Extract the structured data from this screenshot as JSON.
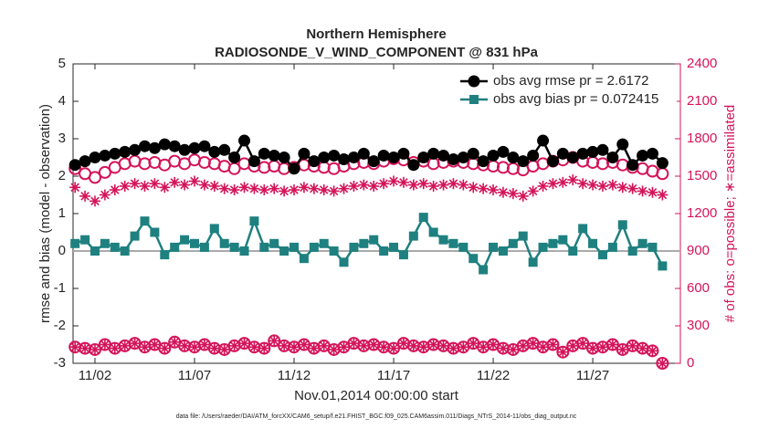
{
  "chart_data": {
    "type": "line",
    "title": "Northern Hemisphere",
    "subtitle": "RADIOSONDE_V_WIND_COMPONENT @ 831 hPa",
    "ylabel": "rmse and bias (model - observation)",
    "y2label": "# of obs: o=possible; ∗=assimilated",
    "xlabel": "Nov.01,2014 00:00:00 start",
    "footnote": "data file: /Users/raeder/DAI/ATM_forcXX/CAM6_setup/f.e21.FHIST_BGC.f09_025.CAM6assim.011/Diags_NTrS_2014-11/obs_diag_output.nc",
    "legend": "upper right",
    "hline": 0,
    "xlim": [
      0.9,
      31.4
    ],
    "xticks": [
      {
        "value": 2,
        "label": "11/02"
      },
      {
        "value": 7,
        "label": "11/07"
      },
      {
        "value": 12,
        "label": "11/12"
      },
      {
        "value": 17,
        "label": "11/17"
      },
      {
        "value": 22,
        "label": "11/22"
      },
      {
        "value": 27,
        "label": "11/27"
      }
    ],
    "ylim": [
      -3,
      5
    ],
    "yticks": [
      -3,
      -2,
      -1,
      0,
      1,
      2,
      3,
      4,
      5
    ],
    "y2lim": [
      0,
      2400
    ],
    "y2ticks": [
      0,
      300,
      600,
      900,
      1200,
      1500,
      1800,
      2100,
      2400
    ],
    "x": [
      1,
      1.5,
      2,
      2.5,
      3,
      3.5,
      4,
      4.5,
      5,
      5.5,
      6,
      6.5,
      7,
      7.5,
      8,
      8.5,
      9,
      9.5,
      10,
      10.5,
      11,
      11.5,
      12,
      12.5,
      13,
      13.5,
      14,
      14.5,
      15,
      15.5,
      16,
      16.5,
      17,
      17.5,
      18,
      18.5,
      19,
      19.5,
      20,
      20.5,
      21,
      21.5,
      22,
      22.5,
      23,
      23.5,
      24,
      24.5,
      25,
      25.5,
      26,
      26.5,
      27,
      27.5,
      28,
      28.5,
      29,
      29.5,
      30,
      30.5
    ],
    "series": [
      {
        "name": "obs avg rmse pr = 2.6172",
        "color": "#000000",
        "marker": "circle-filled",
        "linestyle": "-",
        "values": [
          2.3,
          2.4,
          2.5,
          2.55,
          2.6,
          2.65,
          2.7,
          2.8,
          2.75,
          2.85,
          2.8,
          2.7,
          2.75,
          2.8,
          2.65,
          2.7,
          2.5,
          2.95,
          2.4,
          2.6,
          2.55,
          2.5,
          2.2,
          2.6,
          2.4,
          2.5,
          2.55,
          2.45,
          2.5,
          2.6,
          2.4,
          2.55,
          2.5,
          2.6,
          2.3,
          2.5,
          2.6,
          2.55,
          2.45,
          2.5,
          2.6,
          2.4,
          2.55,
          2.65,
          2.5,
          2.4,
          2.55,
          2.95,
          2.4,
          2.6,
          2.5,
          2.6,
          2.65,
          2.7,
          2.5,
          2.85,
          2.3,
          2.55,
          2.6,
          2.35
        ]
      },
      {
        "name": "obs avg bias pr = 0.072415",
        "color": "#1f8080",
        "marker": "square",
        "linestyle": "-",
        "values": [
          0.2,
          0.3,
          0,
          0.2,
          0.1,
          0,
          0.4,
          0.8,
          0.5,
          -0.1,
          0.1,
          0.3,
          0.2,
          0.1,
          0.6,
          0.2,
          0.1,
          0,
          0.8,
          0.1,
          0.2,
          0,
          0.1,
          -0.2,
          0.1,
          0.2,
          0,
          -0.3,
          0.1,
          0.2,
          0.3,
          0,
          0.1,
          -0.1,
          0.4,
          0.9,
          0.5,
          0.3,
          0.2,
          0.1,
          -0.2,
          -0.5,
          0.1,
          0,
          0.2,
          0.4,
          -0.3,
          0.1,
          0.2,
          0.3,
          0,
          0.6,
          0.2,
          -0.1,
          0.1,
          0.7,
          0,
          0.2,
          0.1,
          -0.4
        ]
      },
      {
        "color": "#d4145a",
        "marker": "circle-open",
        "linestyle": "none",
        "axis": "y2",
        "values": [
          1560,
          1520,
          1490,
          1530,
          1570,
          1600,
          1620,
          1600,
          1610,
          1590,
          1620,
          1600,
          1630,
          1610,
          1600,
          1580,
          1560,
          1600,
          1580,
          1570,
          1580,
          1560,
          1570,
          1590,
          1580,
          1570,
          1560,
          1580,
          1600,
          1610,
          1600,
          1620,
          1640,
          1630,
          1610,
          1620,
          1600,
          1610,
          1620,
          1610,
          1600,
          1590,
          1580,
          1570,
          1560,
          1550,
          1580,
          1600,
          1620,
          1630,
          1650,
          1620,
          1610,
          1600,
          1610,
          1590,
          1570,
          1560,
          1540,
          1520
        ]
      },
      {
        "color": "#d4145a",
        "marker": "asterisk",
        "linestyle": "none",
        "axis": "y2",
        "values": [
          1410,
          1340,
          1300,
          1350,
          1390,
          1420,
          1440,
          1420,
          1440,
          1410,
          1450,
          1430,
          1460,
          1430,
          1420,
          1400,
          1390,
          1410,
          1400,
          1390,
          1400,
          1380,
          1390,
          1410,
          1400,
          1390,
          1380,
          1400,
          1420,
          1430,
          1420,
          1440,
          1460,
          1450,
          1430,
          1440,
          1420,
          1430,
          1440,
          1430,
          1410,
          1400,
          1390,
          1370,
          1360,
          1340,
          1380,
          1420,
          1440,
          1450,
          1470,
          1440,
          1430,
          1420,
          1430,
          1410,
          1400,
          1380,
          1370,
          1350
        ]
      },
      {
        "color": "#d4145a",
        "marker": "circle-asterisk",
        "linestyle": "none",
        "axis": "y2",
        "values": [
          130,
          120,
          110,
          150,
          120,
          140,
          160,
          130,
          150,
          120,
          170,
          140,
          130,
          150,
          120,
          110,
          140,
          160,
          130,
          120,
          180,
          140,
          130,
          150,
          120,
          140,
          110,
          130,
          160,
          140,
          150,
          130,
          120,
          160,
          140,
          130,
          150,
          140,
          120,
          130,
          160,
          130,
          150,
          120,
          110,
          140,
          160,
          130,
          150,
          90,
          140,
          160,
          120,
          130,
          150,
          110,
          140,
          120,
          100,
          0
        ]
      }
    ]
  }
}
